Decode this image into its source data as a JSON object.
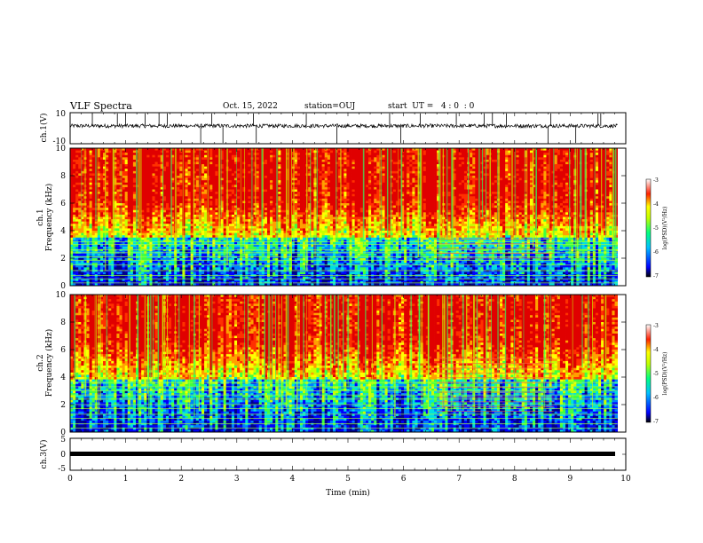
{
  "header": {
    "title": "VLF Spectra",
    "date": "Oct. 15, 2022",
    "station": "station=OUJ",
    "start": "start  UT =   4 : 0  : 0"
  },
  "chart_data": [
    {
      "panel": "ch1-waveform",
      "type": "line",
      "ylabel": "ch.1(V)",
      "ylim": [
        -10,
        10
      ],
      "ytick_labels": [
        "10",
        "-10"
      ],
      "xlim": [
        0,
        10
      ],
      "baseline_level": 1.5,
      "noise_amplitude": 1.2,
      "spike_times": [
        0.4,
        0.85,
        1.0,
        1.35,
        1.6,
        1.75,
        2.35,
        2.55,
        2.75,
        3.3,
        3.35,
        4.25,
        4.8,
        5.75,
        5.95,
        6.3,
        6.95,
        7.45,
        7.6,
        7.85,
        8.6,
        8.65,
        9.1,
        9.5,
        9.55
      ]
    },
    {
      "panel": "ch1-spectrogram",
      "type": "heatmap",
      "ylabel": "ch.1\nFrequency (kHz)",
      "ylim": [
        0,
        10
      ],
      "ytick_labels": [
        "0",
        "2",
        "4",
        "6",
        "8",
        "10"
      ],
      "xlim": [
        0,
        9.85
      ],
      "zlim": [
        -7,
        -3
      ],
      "zlabel": "log(PSD)(V²/Hz)",
      "ztick_labels": [
        "-3",
        "-4",
        "-5",
        "-6",
        "-7"
      ],
      "noise_floor_top_khz": 3.5,
      "line_frequencies_khz": [
        0.2,
        0.5,
        0.75,
        1.1,
        1.5,
        1.85,
        2.1,
        2.4,
        2.6,
        3.0,
        3.2
      ],
      "interference_window_min": [
        6.6,
        8.7
      ],
      "interference_band_khz": [
        2.0,
        3.5
      ]
    },
    {
      "panel": "ch2-spectrogram",
      "type": "heatmap",
      "ylabel": "ch.2\nFrequency (kHz)",
      "ylim": [
        0,
        10
      ],
      "ytick_labels": [
        "0",
        "2",
        "4",
        "6",
        "8",
        "10"
      ],
      "xlim": [
        0,
        9.85
      ],
      "zlim": [
        -7,
        -3
      ],
      "zlabel": "log(PSD)(V²/Hz)",
      "ztick_labels": [
        "-3",
        "-4",
        "-5",
        "-6",
        "-7"
      ],
      "noise_floor_top_khz": 3.8,
      "line_frequencies_khz": [
        0.3,
        0.6,
        1.0,
        1.3,
        1.7,
        2.0,
        2.4,
        2.7,
        3.0,
        3.3,
        3.6
      ],
      "interference_window_min": [
        6.6,
        8.7
      ],
      "interference_band_khz": [
        1.5,
        5.5
      ]
    },
    {
      "panel": "ch3-waveform",
      "type": "line",
      "ylabel": "ch.3(V)",
      "ylim": [
        -5,
        5
      ],
      "ytick_labels": [
        "5",
        "0",
        "-5"
      ],
      "xlim": [
        0,
        10
      ],
      "xlabel": "Time  (min)",
      "xtick_labels": [
        "0",
        "1",
        "2",
        "3",
        "4",
        "5",
        "6",
        "7",
        "8",
        "9",
        "10"
      ],
      "constant_level": -1.5
    }
  ],
  "colors": {
    "colormap": [
      "#00008b",
      "#0000ff",
      "#0080ff",
      "#00e0e0",
      "#40ff40",
      "#c8ff00",
      "#ffff00",
      "#ffa000",
      "#ff3000",
      "#e00000"
    ],
    "line_color": "#000000"
  }
}
